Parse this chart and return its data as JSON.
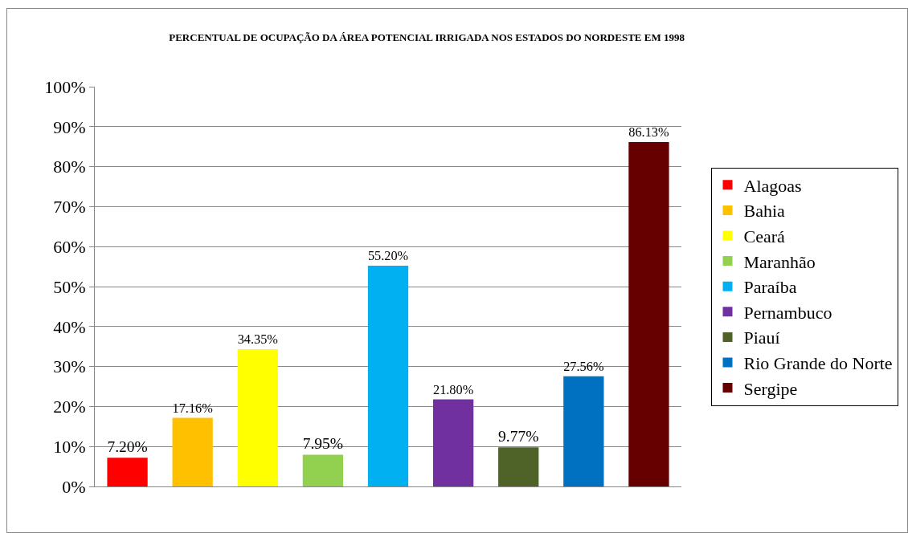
{
  "chart_data": {
    "type": "bar",
    "title": "PERCENTUAL DE OCUPAÇÃO DA ÁREA POTENCIAL IRRIGADA NOS ESTADOS DO NORDESTE EM 1998",
    "categories": [
      null,
      null,
      null,
      null,
      null,
      null,
      null,
      null,
      null
    ],
    "series": [
      {
        "name": "Alagoas",
        "color": "#ff0000",
        "values": [
          7.2,
          null,
          null,
          null,
          null,
          null,
          null,
          null,
          null
        ],
        "value_labels": [
          "7.20%",
          null,
          null,
          null,
          null,
          null,
          null,
          null,
          null
        ]
      },
      {
        "name": "Bahia",
        "color": "#ffc000",
        "values": [
          null,
          17.16,
          null,
          null,
          null,
          null,
          null,
          null,
          null
        ],
        "value_labels": [
          null,
          "17.16%",
          null,
          null,
          null,
          null,
          null,
          null,
          null
        ]
      },
      {
        "name": "Ceará",
        "color": "#ffff00",
        "values": [
          null,
          null,
          34.35,
          null,
          null,
          null,
          null,
          null,
          null
        ],
        "value_labels": [
          null,
          null,
          "34.35%",
          null,
          null,
          null,
          null,
          null,
          null
        ]
      },
      {
        "name": "Maranhão",
        "color": "#92d050",
        "values": [
          null,
          null,
          null,
          7.95,
          null,
          null,
          null,
          null,
          null
        ],
        "value_labels": [
          null,
          null,
          null,
          "7.95%",
          null,
          null,
          null,
          null,
          null
        ]
      },
      {
        "name": "Paraíba",
        "color": "#00b0f0",
        "values": [
          null,
          null,
          null,
          null,
          55.2,
          null,
          null,
          null,
          null
        ],
        "value_labels": [
          null,
          null,
          null,
          null,
          "55.20%",
          null,
          null,
          null,
          null
        ]
      },
      {
        "name": "Pernambuco",
        "color": "#7030a0",
        "values": [
          null,
          null,
          null,
          null,
          null,
          21.8,
          null,
          null,
          null
        ],
        "value_labels": [
          null,
          null,
          null,
          null,
          null,
          "21.80%",
          null,
          null,
          null
        ]
      },
      {
        "name": "Piauí",
        "color": "#4f6228",
        "values": [
          null,
          null,
          null,
          null,
          null,
          null,
          9.77,
          null,
          null
        ],
        "value_labels": [
          null,
          null,
          null,
          null,
          null,
          null,
          "9.77%",
          null,
          null
        ]
      },
      {
        "name": "Rio Grande do Norte",
        "color": "#0070c0",
        "values": [
          null,
          null,
          null,
          null,
          null,
          null,
          null,
          27.56,
          null
        ],
        "value_labels": [
          null,
          null,
          null,
          null,
          null,
          null,
          null,
          "27.56%",
          null
        ]
      },
      {
        "name": "Sergipe",
        "color": "#660000",
        "values": [
          null,
          null,
          null,
          null,
          null,
          null,
          null,
          null,
          86.13
        ],
        "value_labels": [
          null,
          null,
          null,
          null,
          null,
          null,
          null,
          null,
          "86.13%"
        ]
      }
    ],
    "ylim": [
      0,
      100
    ],
    "yticks": [
      {
        "value": 0,
        "label": "0%"
      },
      {
        "value": 10,
        "label": "10%"
      },
      {
        "value": 20,
        "label": "20%"
      },
      {
        "value": 30,
        "label": "30%"
      },
      {
        "value": 40,
        "label": "40%"
      },
      {
        "value": 50,
        "label": "50%"
      },
      {
        "value": 60,
        "label": "60%"
      },
      {
        "value": 70,
        "label": "70%"
      },
      {
        "value": 80,
        "label": "80%"
      },
      {
        "value": 90,
        "label": "90%"
      },
      {
        "value": 100,
        "label": "100%"
      }
    ],
    "grid": "y",
    "legend": "right"
  }
}
